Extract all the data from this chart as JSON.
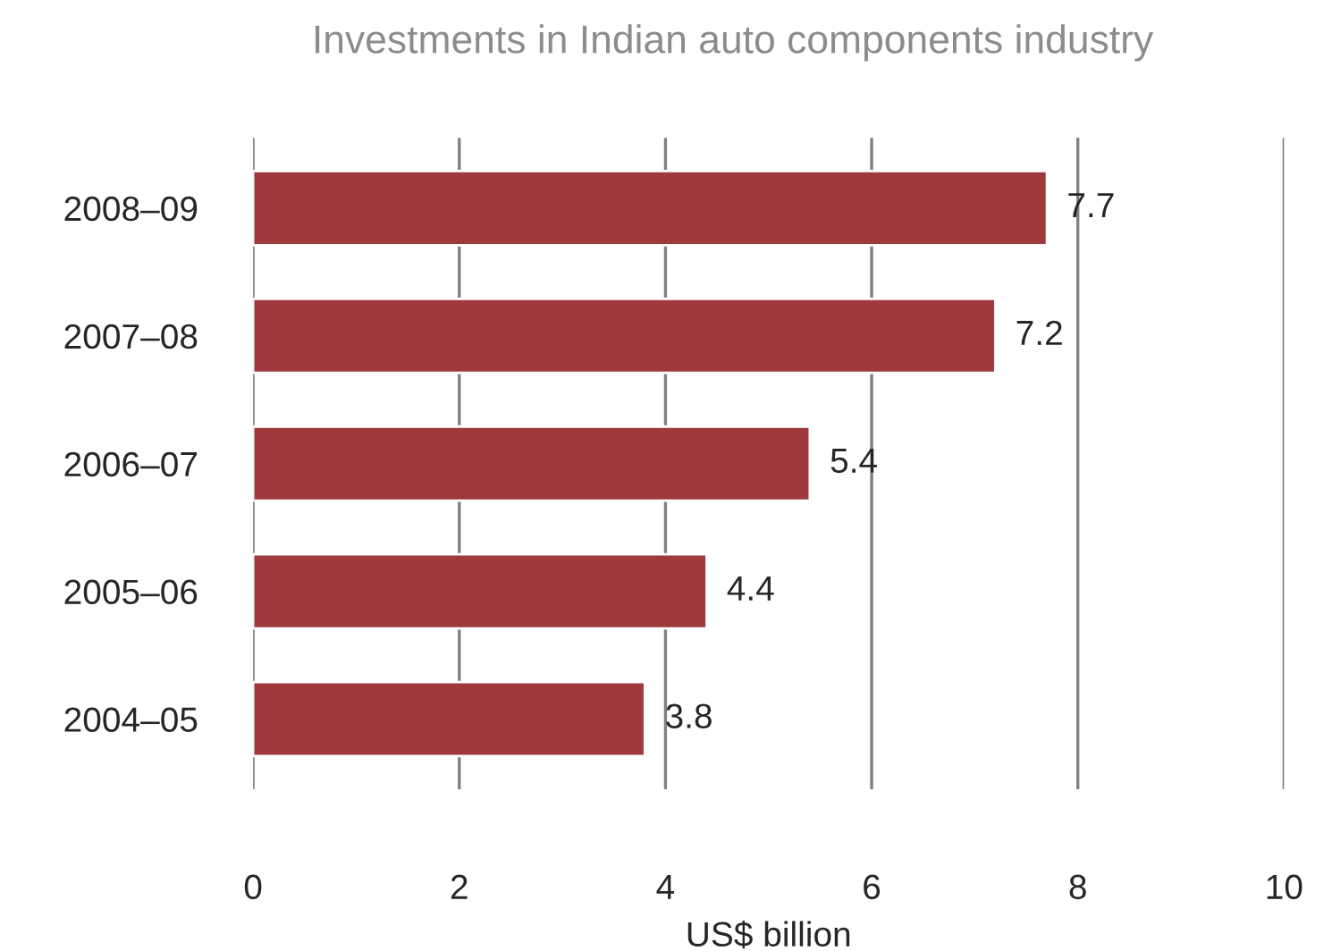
{
  "chart_data": {
    "type": "bar",
    "orientation": "horizontal",
    "title": "Investments in Indian auto components industry",
    "xlabel": "US$ billion",
    "categories": [
      "2008–09",
      "2007–08",
      "2006–07",
      "2005–06",
      "2004–05"
    ],
    "values": [
      7.7,
      7.2,
      5.4,
      4.4,
      3.8
    ],
    "color": "#9e393e",
    "xlim": [
      0,
      10
    ],
    "xticks": [
      0,
      2,
      4,
      6,
      8,
      10
    ],
    "grid": "x",
    "data_labels": true,
    "legend": false
  }
}
